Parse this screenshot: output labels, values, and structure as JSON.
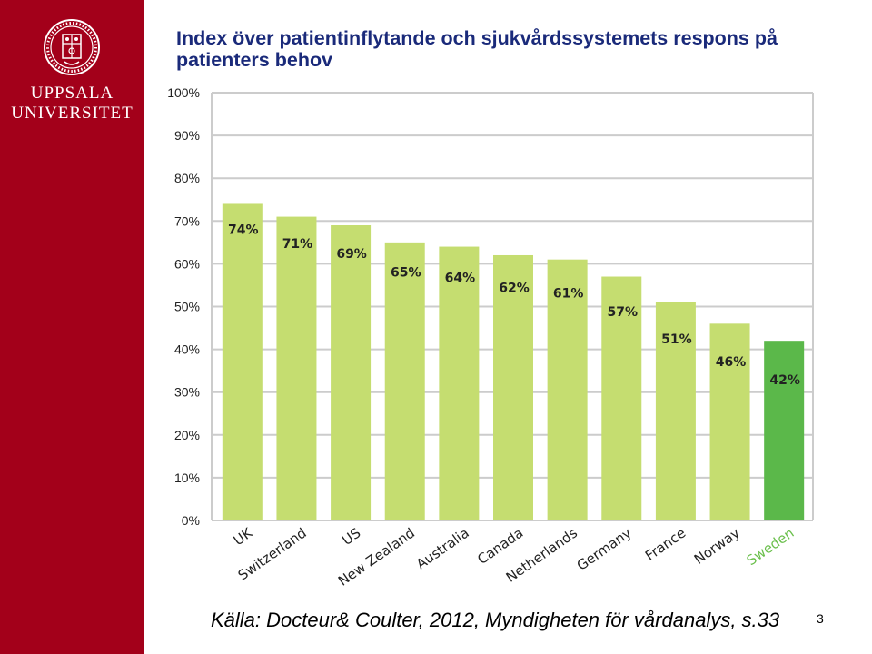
{
  "university": {
    "line1": "UPPSALA",
    "line2": "UNIVERSITET",
    "seal_text": "SIGILLUM UNIVERSITATIS UPSALIENSIS"
  },
  "slide": {
    "title": "Index över patientinflytande och sjukvårdssystemets respons på patienters behov",
    "source": "Källa: Docteur& Coulter, 2012, Myndigheten för vårdanalys, s.33",
    "page_number": "3"
  },
  "colors": {
    "brand_red": "#a3001a",
    "title_blue": "#1a2a7a",
    "bar": "#c5dd70",
    "highlight_bar": "#5bb84a",
    "highlight_label": "#6abf4b",
    "grid": "#cccccc",
    "text": "#222222"
  },
  "chart_data": {
    "type": "bar",
    "title": "",
    "xlabel": "",
    "ylabel": "",
    "ylim": [
      0,
      100
    ],
    "yticks": [
      "0%",
      "10%",
      "20%",
      "30%",
      "40%",
      "50%",
      "60%",
      "70%",
      "80%",
      "90%",
      "100%"
    ],
    "grid": true,
    "categories": [
      "UK",
      "Switzerland",
      "US",
      "New Zealand",
      "Australia",
      "Canada",
      "Netherlands",
      "Germany",
      "France",
      "Norway",
      "Sweden"
    ],
    "values": [
      74,
      71,
      69,
      65,
      64,
      62,
      61,
      57,
      51,
      46,
      42
    ],
    "data_labels": [
      "74%",
      "71%",
      "69%",
      "65%",
      "64%",
      "62%",
      "61%",
      "57%",
      "51%",
      "46%",
      "42%"
    ],
    "highlight": "Sweden"
  }
}
